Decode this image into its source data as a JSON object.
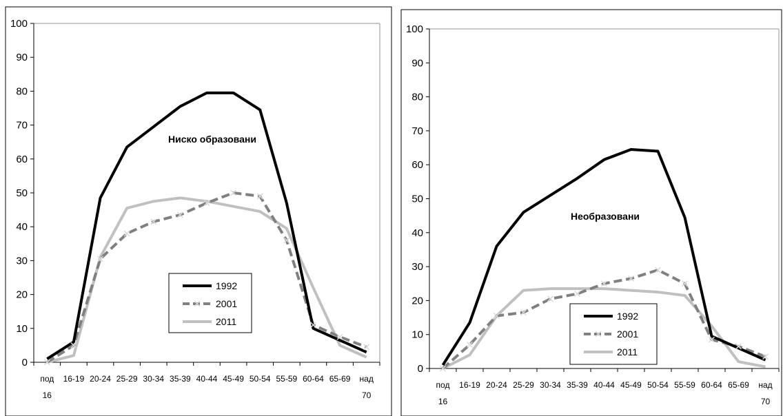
{
  "chart_data": [
    {
      "type": "line",
      "title": "",
      "annotation": "Ниско образовани",
      "categories": [
        "под 16",
        "16-19",
        "20-24",
        "25-29",
        "30-34",
        "35-39",
        "40-44",
        "45-49",
        "50-54",
        "55-59",
        "60-64",
        "65-69",
        "над 70"
      ],
      "ylim": [
        0,
        100
      ],
      "yticks": [
        "0",
        "10",
        "20",
        "30",
        "40",
        "50",
        "60",
        "70",
        "80",
        "90",
        "100"
      ],
      "grid": false,
      "legend_position": "bottom-center",
      "series": [
        {
          "name": "1992",
          "color": "#000000",
          "values": [
            1,
            6,
            48.5,
            63.5,
            69.5,
            75.5,
            79.5,
            79.5,
            74.5,
            47,
            10,
            6.5,
            3
          ]
        },
        {
          "name": "2001",
          "color": "#808080",
          "values": [
            0,
            5,
            30.5,
            38,
            41.5,
            43.5,
            47,
            50,
            49,
            36,
            11,
            7.5,
            4.5
          ]
        },
        {
          "name": "2011",
          "color": "#c0c0c0",
          "values": [
            0,
            2,
            31,
            45.5,
            47.5,
            48.5,
            47.5,
            46,
            44.5,
            39.5,
            22,
            5,
            1.5
          ]
        }
      ]
    },
    {
      "type": "line",
      "title": "",
      "annotation": "Необразовани",
      "categories": [
        "под 16",
        "16-19",
        "20-24",
        "25-29",
        "30-34",
        "35-39",
        "40-44",
        "45-49",
        "50-54",
        "55-59",
        "60-64",
        "65-69",
        "над 70"
      ],
      "ylim": [
        0,
        100
      ],
      "yticks": [
        "0",
        "10",
        "20",
        "30",
        "40",
        "50",
        "60",
        "70",
        "80",
        "90",
        "100"
      ],
      "grid": false,
      "legend_position": "bottom-center",
      "series": [
        {
          "name": "1992",
          "color": "#000000",
          "values": [
            1,
            13.5,
            36,
            46,
            51,
            56,
            61.5,
            64.5,
            64,
            44.5,
            9.5,
            6,
            2.5
          ]
        },
        {
          "name": "2001",
          "color": "#808080",
          "values": [
            0,
            7,
            15.5,
            16.5,
            20.5,
            22,
            25,
            26.5,
            29,
            25,
            8.5,
            6.5,
            3.5
          ]
        },
        {
          "name": "2011",
          "color": "#c0c0c0",
          "values": [
            0,
            4,
            15.5,
            23,
            23.5,
            23.5,
            23.5,
            23,
            22.5,
            21.5,
            12.5,
            2,
            0.5
          ]
        }
      ]
    }
  ]
}
